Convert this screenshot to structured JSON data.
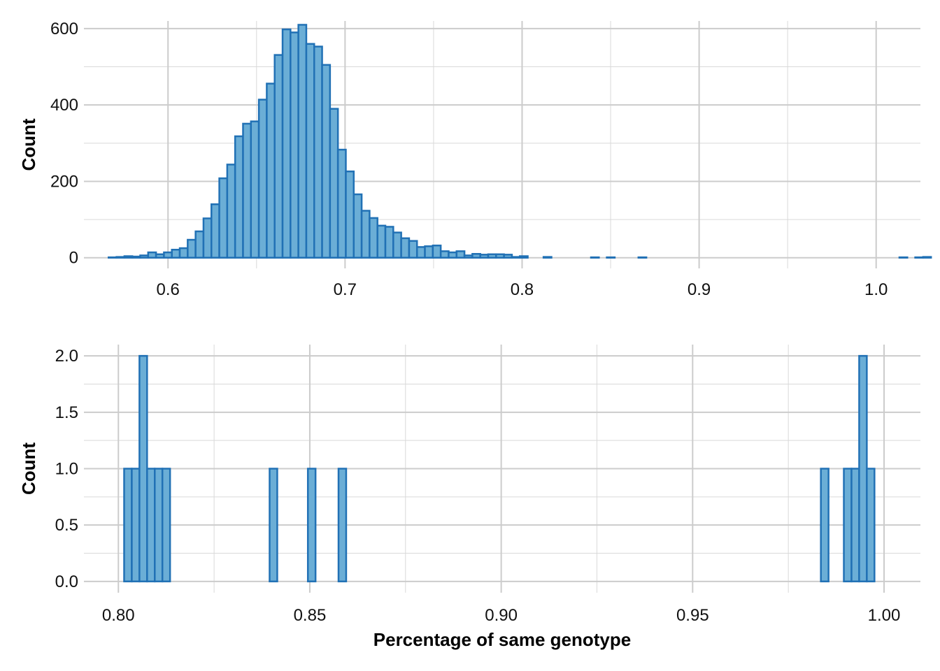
{
  "colors": {
    "bar_fill": "#6baed6",
    "bar_stroke": "#2171b5",
    "grid": "#cccccc",
    "background": "#ffffff"
  },
  "chart_data": [
    {
      "type": "bar",
      "title": "",
      "xlabel": "",
      "ylabel": "Count",
      "xlim": [
        0.5525,
        1.025
      ],
      "ylim": [
        -28,
        620
      ],
      "x_ticks": [
        0.6,
        0.7,
        0.8,
        0.9,
        1.0
      ],
      "x_tick_labels": [
        "0.6",
        "0.7",
        "0.8",
        "0.9",
        "1.0"
      ],
      "x_minor_ticks": [
        0.55,
        0.65,
        0.75,
        0.85,
        0.95
      ],
      "y_ticks": [
        0,
        200,
        400,
        600
      ],
      "y_tick_labels": [
        "0",
        "200",
        "400",
        "600"
      ],
      "y_minor_ticks": [
        100,
        300,
        500
      ],
      "grid": true,
      "bin_start": 0.5575,
      "bin_width": 0.004467,
      "values": [
        0,
        0,
        1,
        2,
        4,
        3,
        6,
        14,
        9,
        14,
        21,
        25,
        47,
        69,
        103,
        140,
        208,
        244,
        318,
        351,
        357,
        414,
        456,
        531,
        598,
        590,
        610,
        560,
        553,
        505,
        390,
        283,
        226,
        166,
        123,
        104,
        84,
        81,
        66,
        51,
        44,
        28,
        30,
        32,
        17,
        14,
        17,
        6,
        10,
        8,
        9,
        9,
        8,
        2,
        4,
        0,
        0,
        2,
        0,
        0,
        0,
        0,
        0,
        1,
        0,
        1,
        0,
        0,
        0,
        1,
        0,
        0,
        0,
        0,
        0,
        0,
        0,
        0,
        0,
        0,
        0,
        0,
        0,
        0,
        0,
        0,
        0,
        0,
        0,
        0,
        0,
        0,
        0,
        0,
        0,
        0,
        0,
        0,
        0,
        0,
        0,
        0,
        1,
        0,
        1,
        2,
        0
      ]
    },
    {
      "type": "bar",
      "title": "",
      "xlabel": "Percentage of same genotype",
      "ylabel": "Count",
      "xlim": [
        0.791,
        1.0095
      ],
      "ylim": [
        -0.1,
        2.1
      ],
      "x_ticks": [
        0.8,
        0.85,
        0.9,
        0.95,
        1.0
      ],
      "x_tick_labels": [
        "0.80",
        "0.85",
        "0.90",
        "0.95",
        "1.00"
      ],
      "x_minor_ticks": [
        0.825,
        0.875,
        0.925,
        0.975
      ],
      "y_ticks": [
        0,
        0.5,
        1.0,
        1.5,
        2.0
      ],
      "y_tick_labels": [
        "0.0",
        "0.5",
        "1.0",
        "1.5",
        "2.0"
      ],
      "y_minor_ticks": [
        0.25,
        0.75,
        1.25,
        1.75
      ],
      "grid": true,
      "bin_start": 0.8015,
      "bin_width": 0.002,
      "values": [
        1,
        1,
        2,
        1,
        1,
        1,
        0,
        0,
        0,
        0,
        0,
        0,
        0,
        0,
        0,
        0,
        0,
        0,
        0,
        1,
        0,
        0,
        0,
        0,
        1,
        0,
        0,
        0,
        1,
        0,
        0,
        0,
        0,
        0,
        0,
        0,
        0,
        0,
        0,
        0,
        0,
        0,
        0,
        0,
        0,
        0,
        0,
        0,
        0,
        0,
        0,
        0,
        0,
        0,
        0,
        0,
        0,
        0,
        0,
        0,
        0,
        0,
        0,
        0,
        0,
        0,
        0,
        0,
        0,
        0,
        0,
        0,
        0,
        0,
        0,
        0,
        0,
        0,
        0,
        0,
        0,
        0,
        0,
        0,
        0,
        0,
        0,
        0,
        0,
        0,
        0,
        1,
        0,
        0,
        1,
        1,
        2,
        1
      ]
    }
  ]
}
